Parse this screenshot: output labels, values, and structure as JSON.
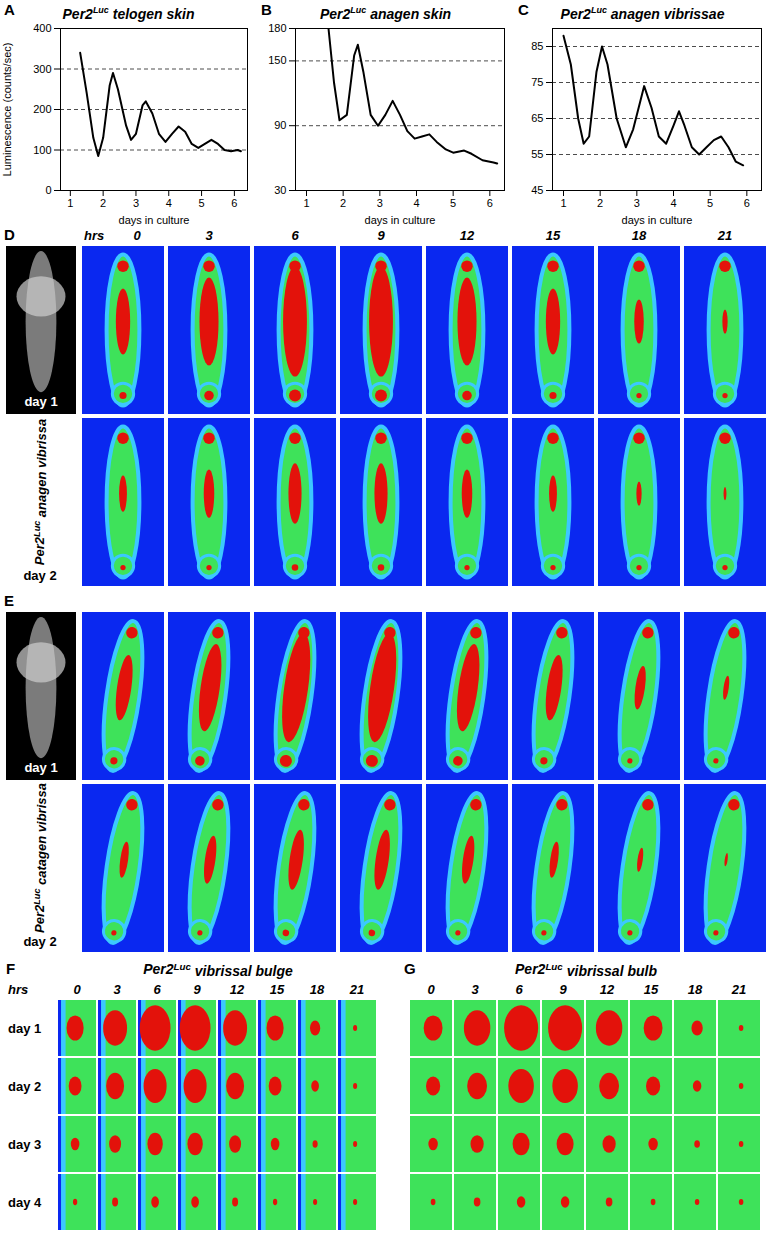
{
  "chart_data": [
    {
      "panel": "A",
      "type": "line",
      "title": "Per2Luc telogen skin",
      "x_label": "days in culture",
      "y_label": "Luminescence (counts/sec)",
      "x": [
        1.3,
        1.5,
        1.7,
        1.85,
        2.0,
        2.2,
        2.3,
        2.45,
        2.7,
        2.85,
        3.0,
        3.2,
        3.3,
        3.5,
        3.7,
        3.9,
        4.1,
        4.3,
        4.5,
        4.7,
        4.9,
        5.1,
        5.3,
        5.5,
        5.7,
        5.9,
        6.1,
        6.2
      ],
      "values": [
        340,
        240,
        130,
        85,
        130,
        260,
        290,
        250,
        160,
        125,
        140,
        210,
        220,
        190,
        140,
        120,
        140,
        158,
        145,
        115,
        105,
        115,
        125,
        115,
        100,
        97,
        100,
        97
      ],
      "color": "#000000",
      "xlim": [
        0.7,
        6.4
      ],
      "xticks": [
        1,
        2,
        3,
        4,
        5,
        6
      ],
      "ylim": [
        0,
        400
      ],
      "yticks": [
        0,
        100,
        200,
        300,
        400
      ],
      "grid": true
    },
    {
      "panel": "B",
      "type": "line",
      "title": "Per2Luc anagen skin",
      "x_label": "days in culture",
      "x": [
        1.6,
        1.75,
        1.9,
        2.1,
        2.3,
        2.4,
        2.55,
        2.75,
        2.95,
        3.15,
        3.35,
        3.55,
        3.75,
        3.95,
        4.15,
        4.35,
        4.55,
        4.8,
        5.0,
        5.3,
        5.5,
        5.8,
        6.1,
        6.2
      ],
      "values": [
        180,
        130,
        95,
        100,
        155,
        165,
        140,
        100,
        90,
        100,
        113,
        100,
        85,
        78,
        80,
        82,
        75,
        68,
        65,
        67,
        64,
        58,
        56,
        55
      ],
      "color": "#000000",
      "xlim": [
        0.7,
        6.4
      ],
      "xticks": [
        1,
        2,
        3,
        4,
        5,
        6
      ],
      "ylim": [
        30,
        180
      ],
      "yticks": [
        30,
        90,
        150,
        180
      ],
      "grid": true
    },
    {
      "panel": "C",
      "type": "line",
      "title": "Per2Luc anagen vibrissae",
      "x_label": "days in culture",
      "x": [
        1.0,
        1.2,
        1.4,
        1.55,
        1.7,
        1.9,
        2.05,
        2.2,
        2.45,
        2.7,
        2.9,
        3.1,
        3.2,
        3.4,
        3.6,
        3.8,
        4.0,
        4.15,
        4.3,
        4.5,
        4.7,
        4.9,
        5.1,
        5.3,
        5.5,
        5.7,
        5.9
      ],
      "values": [
        88,
        80,
        65,
        58,
        60,
        78,
        85,
        80,
        65,
        57,
        62,
        70,
        74,
        68,
        60,
        58,
        63,
        67,
        63,
        57,
        55,
        57,
        59,
        60,
        57,
        53,
        52
      ],
      "color": "#000000",
      "xlim": [
        0.7,
        6.4
      ],
      "xticks": [
        1,
        2,
        3,
        4,
        5,
        6
      ],
      "ylim": [
        45,
        90
      ],
      "yticks": [
        45,
        55,
        65,
        75,
        85
      ],
      "grid": true
    }
  ],
  "image_panels": [
    {
      "panel": "D",
      "hours_label": "hrs",
      "hours": [
        0,
        3,
        6,
        9,
        12,
        15,
        18,
        21
      ],
      "photo_label": "day 1",
      "second_row_label": "day 2",
      "side_label": "Per2Luc anagen vibrissa"
    },
    {
      "panel": "E",
      "photo_label": "day 1",
      "second_row_label": "day 2",
      "side_label": "Per2Luc catagen vibrissa"
    },
    {
      "panel": "F",
      "title": "Per2Luc vibrissal bulge",
      "hours_label": "hrs",
      "hours": [
        0,
        3,
        6,
        9,
        12,
        15,
        18,
        21
      ],
      "rows": [
        "day 1",
        "day 2",
        "day 3",
        "day 4"
      ]
    },
    {
      "panel": "G",
      "title": "Per2Luc vibrissal bulb",
      "hours": [
        0,
        3,
        6,
        9,
        12,
        15,
        18,
        21
      ]
    }
  ]
}
